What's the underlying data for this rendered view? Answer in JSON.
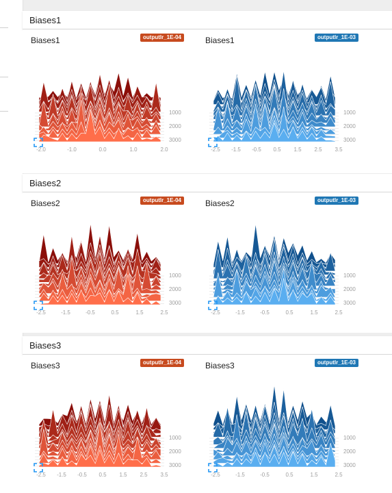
{
  "colors": {
    "red_badge": "#c74a1e",
    "blue_badge": "#1f77b4",
    "red_back": "#8b0f0a",
    "red_front": "#ff6e4a",
    "blue_back": "#10508c",
    "blue_front": "#5aaef0"
  },
  "sections": [
    {
      "title": "Biases1",
      "cards": [
        {
          "title": "Biases1",
          "run": "outputlr_1E-04",
          "scheme": "red",
          "x_ticks": [
            "-2.0",
            "-1.0",
            "0.0",
            "1.0",
            "2.0"
          ],
          "y_ticks": [
            "1000",
            "2000",
            "3000"
          ]
        },
        {
          "title": "Biases1",
          "run": "outputlr_1E-03",
          "scheme": "blue",
          "x_ticks": [
            "-2.5",
            "-1.5",
            "-0.5",
            "0.5",
            "1.5",
            "2.5",
            "3.5"
          ],
          "y_ticks": [
            "1000",
            "2000",
            "3000"
          ]
        }
      ]
    },
    {
      "title": "Biases2",
      "cards": [
        {
          "title": "Biases2",
          "run": "outputlr_1E-04",
          "scheme": "red",
          "x_ticks": [
            "-2.5",
            "-1.5",
            "-0.5",
            "0.5",
            "1.5",
            "2.5"
          ],
          "y_ticks": [
            "1000",
            "2000",
            "3000"
          ]
        },
        {
          "title": "Biases2",
          "run": "outputlr_1E-03",
          "scheme": "blue",
          "x_ticks": [
            "-2.5",
            "-1.5",
            "-0.5",
            "0.5",
            "1.5",
            "2.5"
          ],
          "y_ticks": [
            "1000",
            "2000",
            "3000"
          ]
        }
      ]
    },
    {
      "title": "Biases3",
      "cards": [
        {
          "title": "Biases3",
          "run": "outputlr_1E-04",
          "scheme": "red",
          "x_ticks": [
            "-2.5",
            "-1.5",
            "-0.5",
            "0.5",
            "1.5",
            "2.5",
            "3.5"
          ],
          "y_ticks": [
            "1000",
            "2000",
            "3000"
          ]
        },
        {
          "title": "Biases3",
          "run": "outputlr_1E-03",
          "scheme": "blue",
          "x_ticks": [
            "-2.5",
            "-1.5",
            "-0.5",
            "0.5",
            "1.5",
            "2.5"
          ],
          "y_ticks": [
            "1000",
            "2000",
            "3000"
          ]
        }
      ]
    }
  ]
}
